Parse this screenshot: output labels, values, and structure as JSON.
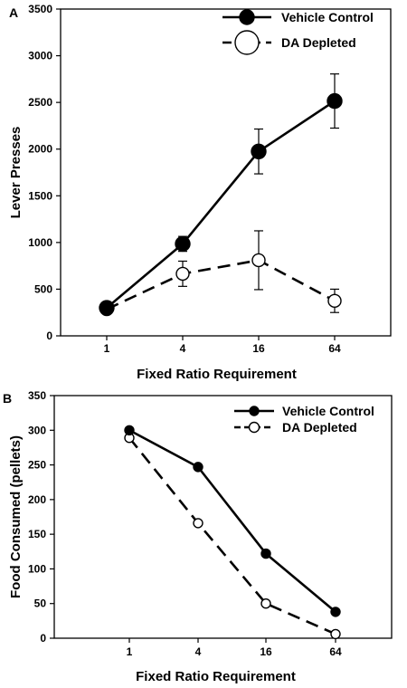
{
  "chart_data": [
    {
      "panel": "A",
      "type": "line",
      "categories": [
        "1",
        "4",
        "16",
        "64"
      ],
      "xlabel": "Fixed Ratio Requirement",
      "ylabel": "Lever Presses",
      "ylim": [
        0,
        3500
      ],
      "yticks": [
        0,
        500,
        1000,
        1500,
        2000,
        2500,
        3000,
        3500
      ],
      "grid": false,
      "legend": "top-right",
      "series": [
        {
          "name": "Vehicle Control",
          "style": "solid",
          "marker": "filled-circle",
          "values": [
            300,
            985,
            1975,
            2515
          ],
          "errors": [
            0,
            80,
            240,
            290
          ]
        },
        {
          "name": "DA Depleted",
          "style": "dashed",
          "marker": "open-circle",
          "values": [
            285,
            665,
            810,
            375
          ],
          "errors": [
            0,
            135,
            315,
            125
          ]
        }
      ]
    },
    {
      "panel": "B",
      "type": "line",
      "categories": [
        "1",
        "4",
        "16",
        "64"
      ],
      "xlabel": "Fixed Ratio Requirement",
      "ylabel": "Food Consumed (pellets)",
      "ylim": [
        0,
        350
      ],
      "yticks": [
        0,
        50,
        100,
        150,
        200,
        250,
        300,
        350
      ],
      "grid": false,
      "legend": "top-right",
      "series": [
        {
          "name": "Vehicle Control",
          "style": "solid",
          "marker": "filled-circle",
          "values": [
            300,
            247,
            122,
            38
          ]
        },
        {
          "name": "DA Depleted",
          "style": "dashed",
          "marker": "open-circle",
          "values": [
            289,
            166,
            50,
            6
          ]
        }
      ]
    }
  ]
}
